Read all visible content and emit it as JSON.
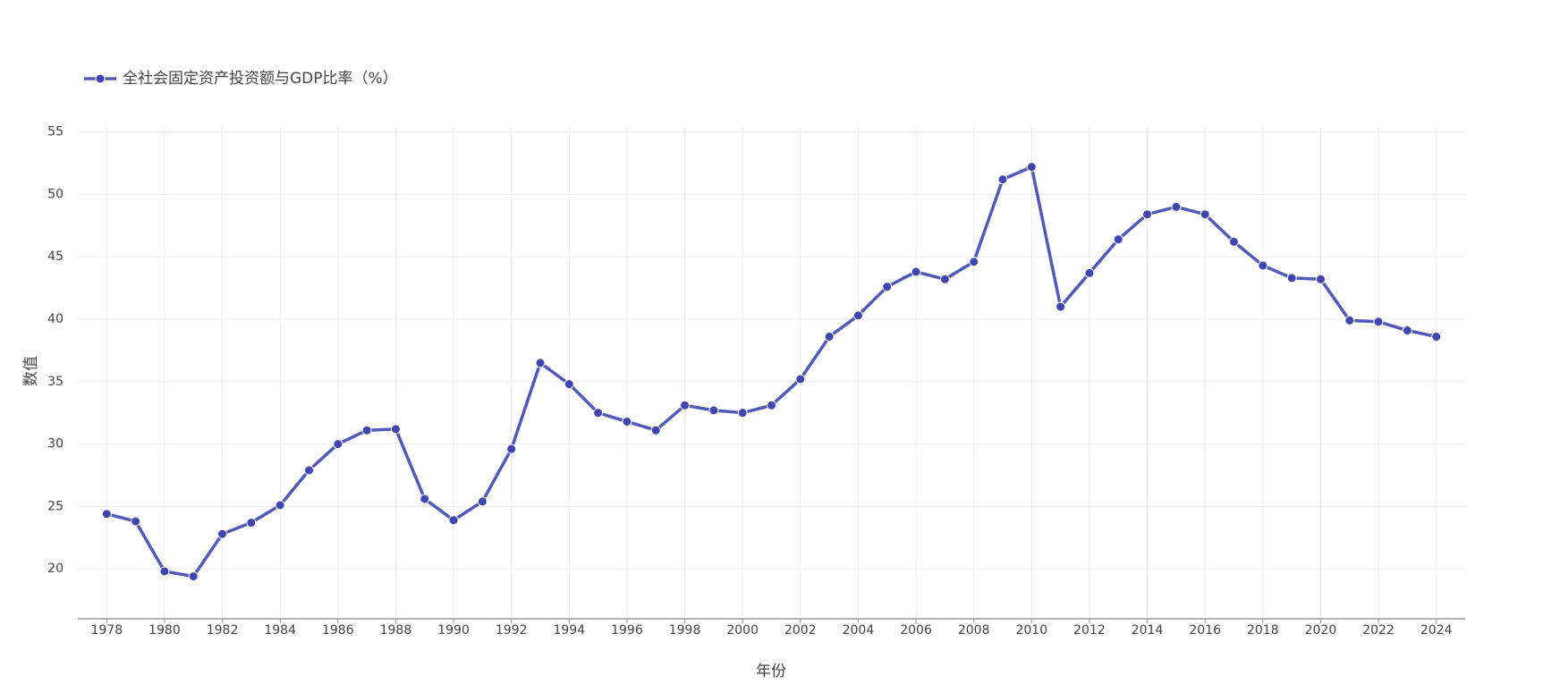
{
  "chart_data": {
    "type": "line",
    "x_label": "年份",
    "y_label": "数值",
    "x": [
      1978,
      1979,
      1980,
      1981,
      1982,
      1983,
      1984,
      1985,
      1986,
      1987,
      1988,
      1989,
      1990,
      1991,
      1992,
      1993,
      1994,
      1995,
      1996,
      1997,
      1998,
      1999,
      2000,
      2001,
      2002,
      2003,
      2004,
      2005,
      2006,
      2007,
      2008,
      2009,
      2010,
      2011,
      2012,
      2013,
      2014,
      2015,
      2016,
      2017,
      2018,
      2019,
      2020,
      2021,
      2022,
      2023,
      2024
    ],
    "series": [
      {
        "name": "全社会固定资产投资额与GDP比率（%）",
        "color": "#5159b9",
        "marker_color": "#3f45b1",
        "values": [
          24.4,
          23.8,
          19.8,
          19.4,
          22.8,
          23.7,
          25.1,
          27.9,
          30.0,
          31.1,
          31.2,
          25.6,
          23.9,
          25.4,
          29.6,
          36.5,
          34.8,
          32.5,
          31.8,
          31.1,
          33.1,
          32.7,
          32.5,
          33.1,
          35.2,
          38.6,
          40.3,
          42.6,
          43.8,
          43.2,
          44.6,
          51.2,
          52.2,
          41.0,
          43.7,
          46.4,
          48.4,
          49.0,
          48.4,
          46.2,
          44.3,
          43.3,
          43.2,
          39.9,
          39.8,
          39.1,
          38.6
        ]
      }
    ],
    "xlim": [
      1977,
      2025
    ],
    "xticks": [
      1978,
      1980,
      1982,
      1984,
      1986,
      1988,
      1990,
      1992,
      1994,
      1996,
      1998,
      2000,
      2002,
      2004,
      2006,
      2008,
      2010,
      2012,
      2014,
      2016,
      2018,
      2020,
      2022,
      2024
    ],
    "ylim": [
      16,
      55.4
    ],
    "yticks": [
      20,
      25,
      30,
      35,
      40,
      45,
      50,
      55
    ],
    "grid": true,
    "legend": "top-left"
  }
}
